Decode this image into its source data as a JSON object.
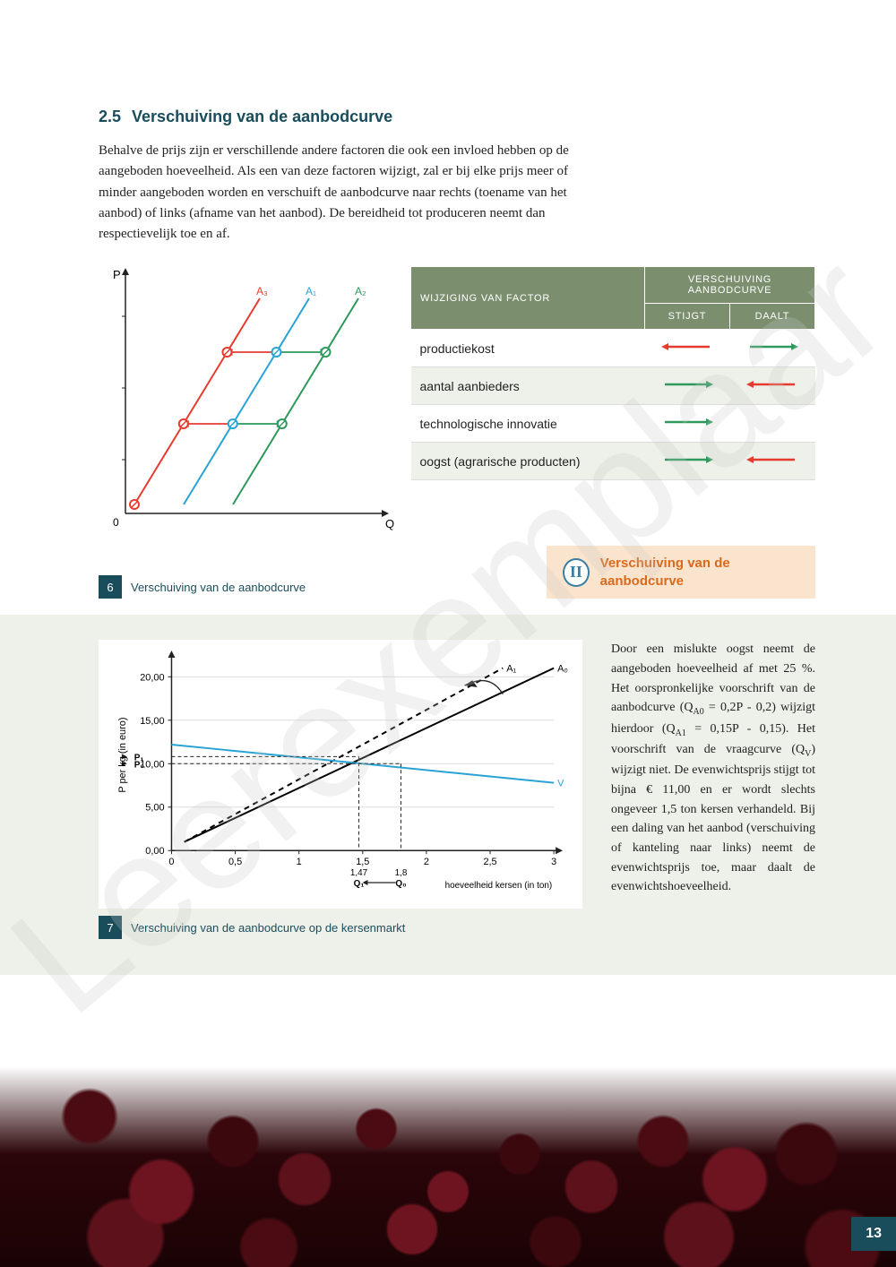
{
  "watermark": "Leerexemplaar",
  "section": {
    "number": "2.5",
    "title": "Verschuiving van de aanbodcurve",
    "body": "Behalve de prijs zijn er verschillende andere factoren die ook een invloed hebben op de aangeboden hoeveelheid. Als een van deze factoren wijzigt, zal er bij elke prijs meer of minder aangeboden worden en verschuift de aanbodcurve naar rechts (toename van het aanbod) of links (afname van het aanbod). De bereidheid tot produceren neemt dan respectievelijk toe en af."
  },
  "chart1": {
    "type": "line",
    "axis_labels": {
      "x": "Q",
      "y": "P",
      "origin": "0"
    },
    "curves": [
      {
        "label": "A₃",
        "color": "#e63b2e",
        "x_offset": 0
      },
      {
        "label": "A₁",
        "color": "#2aa3d4",
        "x_offset": 55
      },
      {
        "label": "A₂",
        "color": "#2d9a5c",
        "x_offset": 110
      }
    ],
    "marker_color_fill": "#ffffff",
    "axis_color": "#222222",
    "arrow_colors": {
      "left": "#e63b2e",
      "right": "#2d9a5c"
    },
    "caption_num": "6",
    "caption_text": "Verschuiving van de aanbodcurve"
  },
  "factors_table": {
    "headers": {
      "factor": "WIJZIGING VAN FACTOR",
      "super": "VERSCHUIVING AANBODCURVE",
      "up": "STIJGT",
      "down": "DAALT"
    },
    "header_bg": "#7b8f6f",
    "alt_row_bg": "#eef1e9",
    "arrow_colors": {
      "red": "#e63b2e",
      "green": "#2d9a5c"
    },
    "rows": [
      {
        "label": "productiekost",
        "up": "left-red",
        "down": "right-green"
      },
      {
        "label": "aantal aanbieders",
        "up": "right-green",
        "down": "left-red"
      },
      {
        "label": "technologische innovatie",
        "up": "right-green",
        "down": ""
      },
      {
        "label": "oogst (agrarische producten)",
        "up": "right-green",
        "down": "left-red"
      }
    ]
  },
  "callout": {
    "icon": "II",
    "text": "Verschuiving van de aanbodcurve"
  },
  "chart2": {
    "type": "line",
    "bg": "#ffffff",
    "axis_color": "#222222",
    "grid_color": "#dddddd",
    "y_label": "P per kg (in euro)",
    "x_label": "hoeveelheid kersen (in ton)",
    "y_ticks": [
      0.0,
      5.0,
      10.0,
      15.0,
      20.0
    ],
    "y_tick_labels": [
      "0,00",
      "5,00",
      "10,00",
      "15,00",
      "20,00"
    ],
    "y_extra_ticks": [
      {
        "v": 10.82,
        "label": "10,82",
        "symbol": "P_E1"
      },
      {
        "v": 10.0,
        "label": "10,00",
        "symbol": "P_E0"
      }
    ],
    "x_ticks": [
      0,
      0.5,
      1,
      1.5,
      2,
      2.5,
      3
    ],
    "x_tick_labels": [
      "0",
      "0,5",
      "1",
      "1,5",
      "2",
      "2,5",
      "3"
    ],
    "x_extra_ticks": [
      {
        "v": 1.47,
        "label": "1,47",
        "symbol": "Q_E1"
      },
      {
        "v": 1.8,
        "label": "1,8",
        "symbol": "Q_E0"
      }
    ],
    "xlim": [
      0,
      3
    ],
    "ylim": [
      0,
      22
    ],
    "series": [
      {
        "name": "A0",
        "label": "A₀",
        "color": "#000000",
        "dash": "none",
        "points": [
          [
            0.1,
            1
          ],
          [
            3,
            21
          ]
        ]
      },
      {
        "name": "A1",
        "label": "A₁",
        "color": "#000000",
        "dash": "6,5",
        "points": [
          [
            0.1,
            1
          ],
          [
            2.6,
            21
          ]
        ]
      },
      {
        "name": "V",
        "label": "V",
        "color": "#2aa3d4",
        "dash": "none",
        "points": [
          [
            0,
            12.2
          ],
          [
            3,
            7.8
          ]
        ]
      }
    ],
    "caption_num": "7",
    "caption_text": "Verschuiving van de aanbodcurve op de kersenmarkt"
  },
  "explain_text": "Door een mislukte oogst neemt de aangeboden hoeveelheid af met 25 %. Het oorspronkelijke voorschrift van de aanbodcurve (Q_A0 = 0,2P - 0,2) wijzigt hierdoor (Q_A1 = 0,15P - 0,15). Het voorschrift van de vraagcurve (Q_V) wijzigt niet. De evenwichtsprijs stijgt tot bijna € 11,00 en er wordt slechts ongeveer 1,5 ton kersen verhandeld. Bij een daling van het aanbod (verschuiving of kanteling naar links) neemt de evenwichtsprijs toe, maar daalt de evenwichtshoeveelheid.",
  "page_number": "13"
}
